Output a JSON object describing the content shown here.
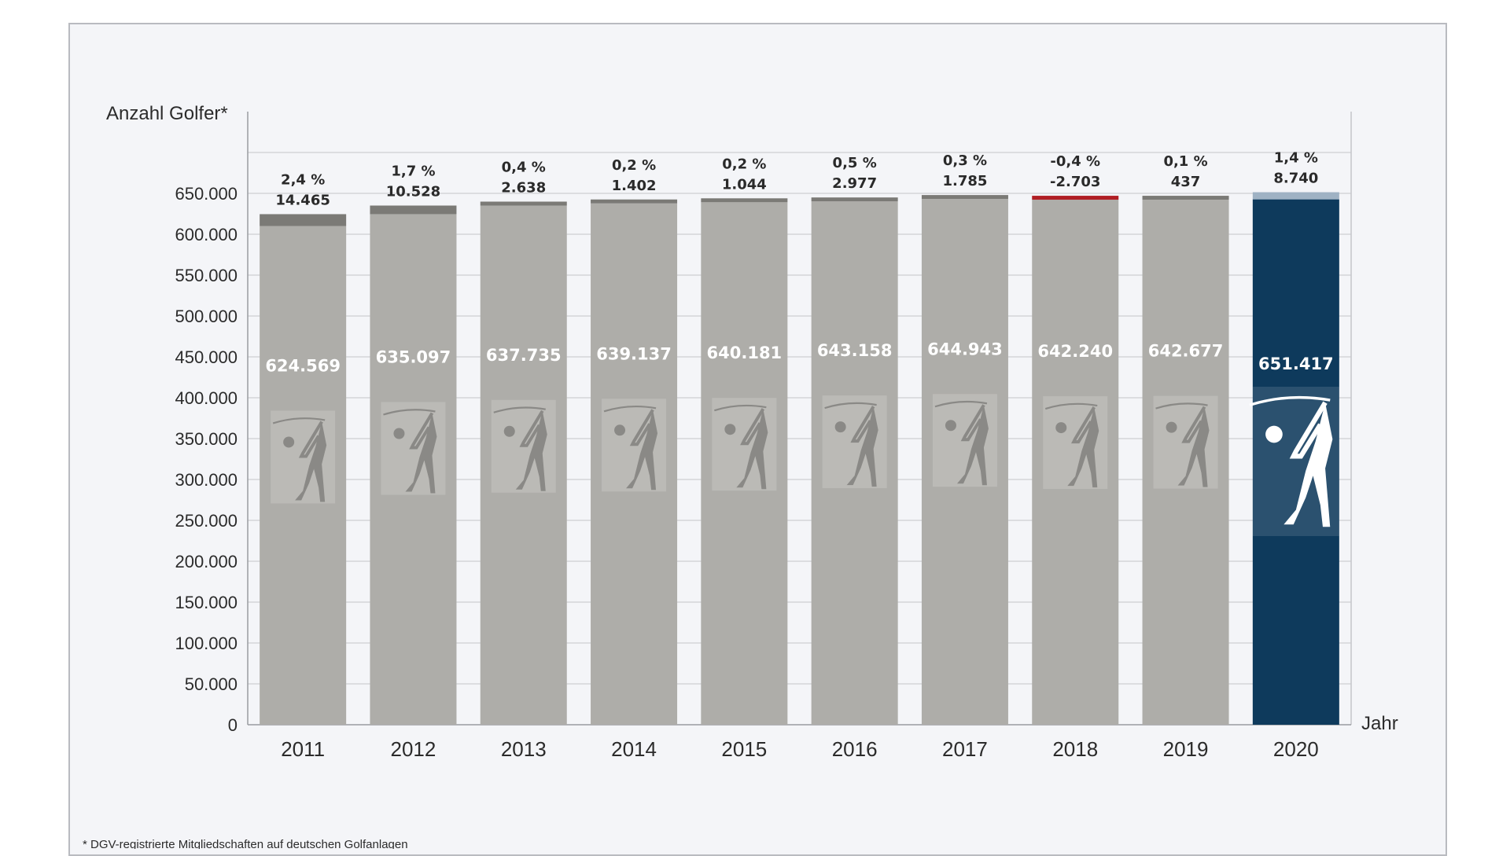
{
  "chart_data": {
    "type": "bar",
    "ylabel": "Anzahl Golfer*",
    "xlabel": "Jahr",
    "ylim": [
      0,
      750000
    ],
    "yticks": [
      0,
      50000,
      100000,
      150000,
      200000,
      250000,
      300000,
      350000,
      400000,
      450000,
      500000,
      550000,
      600000,
      650000
    ],
    "ytick_labels": [
      "0",
      "50.000",
      "100.000",
      "150.000",
      "200.000",
      "250.000",
      "300.000",
      "350.000",
      "400.000",
      "450.000",
      "500.000",
      "550.000",
      "600.000",
      "650.000"
    ],
    "categories": [
      "2011",
      "2012",
      "2013",
      "2014",
      "2015",
      "2016",
      "2017",
      "2018",
      "2019",
      "2020"
    ],
    "values": [
      624569,
      635097,
      637735,
      639137,
      640181,
      643158,
      644943,
      642240,
      642677,
      651417
    ],
    "value_labels": [
      "624.569",
      "635.097",
      "637.735",
      "639.137",
      "640.181",
      "643.158",
      "644.943",
      "642.240",
      "642.677",
      "651.417"
    ],
    "changes": [
      14465,
      10528,
      2638,
      1402,
      1044,
      2977,
      1785,
      -2703,
      437,
      8740
    ],
    "change_labels": [
      "14.465",
      "10.528",
      "2.638",
      "1.402",
      "1.044",
      "2.977",
      "1.785",
      "-2.703",
      "437",
      "8.740"
    ],
    "percent_changes": [
      2.4,
      1.7,
      0.4,
      0.2,
      0.2,
      0.5,
      0.3,
      -0.4,
      0.1,
      1.4
    ],
    "percent_labels": [
      "2,4 %",
      "1,7 %",
      "0,4 %",
      "0,2 %",
      "0,2 %",
      "0,5 %",
      "0,3 %",
      "-0,4 %",
      "0,1 %",
      "1,4 %"
    ],
    "grid": true,
    "highlight_category": "2020",
    "colors": {
      "bar": "#aeada9",
      "bar_highlight": "#0e3a5c",
      "increase_cap": "#7b7a76",
      "decrease_cap": "#b01e24",
      "grid": "#c4c5c9"
    },
    "footnote": "*  DGV-registrierte Mitgliedschaften auf deutschen Golfanlagen"
  },
  "icons": {
    "bar_icon": "golfer-icon"
  }
}
